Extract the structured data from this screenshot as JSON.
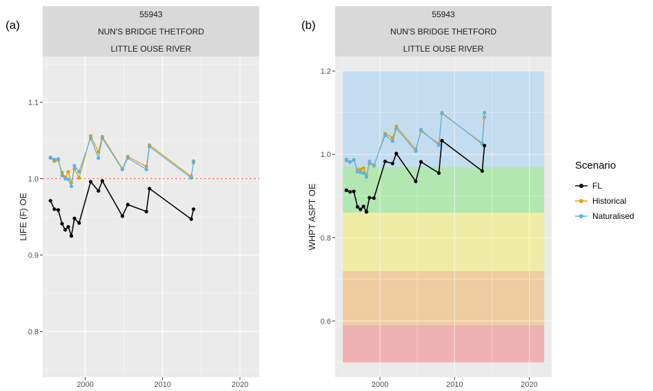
{
  "colors": {
    "FL": "#000000",
    "Historical": "#E69F00",
    "Naturalised": "#56B4E9",
    "ref_line": "#F8766D",
    "panel_bg": "#EBEBEB",
    "strip_bg": "#D9D9D9",
    "grid": "#FFFFFF",
    "band_high": "#BDD9F0",
    "band_good": "#A8E6A8",
    "band_moderate": "#F0EC9A",
    "band_poor": "#F0C894",
    "band_bad": "#F0A8A8"
  },
  "legend": {
    "title": "Scenario",
    "items": [
      "FL",
      "Historical",
      "Naturalised"
    ],
    "placement": "right"
  },
  "chart_data": [
    {
      "type": "line",
      "panel_tag": "(a)",
      "strip": [
        "55943",
        "NUN'S BRIDGE THETFORD",
        "LITTLE OUSE RIVER"
      ],
      "ylabel": "LIFE (F) OE",
      "xlabel": "",
      "xlim": [
        1994.5,
        2022.5
      ],
      "ylim": [
        0.74,
        1.16
      ],
      "xticks": [
        2000,
        2010,
        2020
      ],
      "xtick_labels": [
        "2000",
        "2010",
        "2020"
      ],
      "yticks": [
        0.8,
        0.9,
        1.0,
        1.1
      ],
      "ytick_labels": [
        "0.8",
        "0.9",
        "1.0",
        "1.1"
      ],
      "hline": 1.0,
      "grid": true,
      "series": [
        {
          "name": "FL",
          "x": [
            1995.5,
            1996,
            1996.5,
            1997,
            1997.4,
            1997.8,
            1998.2,
            1998.6,
            1999.2,
            2000.7,
            2001.7,
            2002.2,
            2004.8,
            2005.5,
            2007.9,
            2008.3,
            2013.7,
            2014
          ],
          "y": [
            0.971,
            0.96,
            0.959,
            0.941,
            0.933,
            0.937,
            0.925,
            0.948,
            0.942,
            0.996,
            0.984,
            0.997,
            0.951,
            0.966,
            0.957,
            0.987,
            0.947,
            0.96
          ]
        },
        {
          "name": "Historical",
          "x": [
            1995.5,
            1996,
            1996.5,
            1997,
            1997.4,
            1997.8,
            1998.2,
            1998.6,
            1999.2,
            2000.7,
            2001.7,
            2002.2,
            2004.8,
            2005.5,
            2007.9,
            2008.3,
            2013.7,
            2014
          ],
          "y": [
            1.027,
            1.023,
            1.024,
            1.008,
            1.002,
            1.009,
            0.995,
            1.013,
            1.001,
            1.056,
            1.035,
            1.055,
            1.013,
            1.029,
            1.016,
            1.044,
            1.003,
            1.021
          ]
        },
        {
          "name": "Naturalised",
          "x": [
            1995.5,
            1996,
            1996.5,
            1997,
            1997.4,
            1997.8,
            1998.2,
            1998.6,
            1999.2,
            2000.7,
            2001.7,
            2002.2,
            2004.8,
            2005.5,
            2007.9,
            2008.3,
            2013.7,
            2014
          ],
          "y": [
            1.028,
            1.025,
            1.026,
            1.004,
            1.0,
            0.999,
            0.99,
            1.017,
            1.009,
            1.053,
            1.027,
            1.053,
            1.012,
            1.027,
            1.012,
            1.042,
            1.001,
            1.023
          ]
        }
      ]
    },
    {
      "type": "line",
      "panel_tag": "(b)",
      "strip": [
        "55943",
        "NUN'S BRIDGE THETFORD",
        "LITTLE OUSE RIVER"
      ],
      "ylabel": "WHPT ASPT OE",
      "xlabel": "",
      "xlim": [
        1994,
        2023
      ],
      "ylim": [
        0.465,
        1.235
      ],
      "xticks": [
        2000,
        2010,
        2020
      ],
      "xtick_labels": [
        "2000",
        "2010",
        "2020"
      ],
      "yticks": [
        0.6,
        0.8,
        1.0,
        1.2
      ],
      "ytick_labels": [
        "0.6",
        "0.8",
        "1.0",
        "1.2"
      ],
      "grid": true,
      "bands": [
        {
          "class": "high",
          "from": 0.97,
          "to": 1.2,
          "color": "#BDD9F0"
        },
        {
          "class": "good",
          "from": 0.86,
          "to": 0.97,
          "color": "#A8E6A8"
        },
        {
          "class": "moderate",
          "from": 0.72,
          "to": 0.86,
          "color": "#F0EC9A"
        },
        {
          "class": "poor",
          "from": 0.59,
          "to": 0.72,
          "color": "#F0C894"
        },
        {
          "class": "bad",
          "from": 0.5,
          "to": 0.59,
          "color": "#F0A8A8"
        }
      ],
      "band_xrange": [
        1995,
        2022
      ],
      "series": [
        {
          "name": "FL",
          "x": [
            1995.5,
            1996,
            1996.5,
            1997,
            1997.4,
            1997.8,
            1998.2,
            1998.6,
            1999.2,
            2000.7,
            2001.7,
            2002.2,
            2004.8,
            2005.5,
            2007.9,
            2008.3,
            2013.7,
            2014
          ],
          "y": [
            0.914,
            0.91,
            0.911,
            0.874,
            0.868,
            0.875,
            0.862,
            0.896,
            0.895,
            0.983,
            0.978,
            1.002,
            0.935,
            0.982,
            0.955,
            1.033,
            0.96,
            1.021
          ]
        },
        {
          "name": "Historical",
          "x": [
            1995.5,
            1996,
            1996.5,
            1997,
            1997.4,
            1997.8,
            1998.2,
            1998.6,
            1999.2,
            2000.7,
            2001.7,
            2002.2,
            2004.8,
            2005.5,
            2007.9,
            2008.3,
            2013.7,
            2014
          ],
          "y": [
            0.985,
            0.981,
            0.986,
            0.962,
            0.964,
            0.967,
            0.95,
            0.978,
            0.972,
            1.05,
            1.04,
            1.067,
            1.012,
            1.056,
            1.025,
            1.098,
            1.027,
            1.089
          ]
        },
        {
          "name": "Naturalised",
          "x": [
            1995.5,
            1996,
            1996.5,
            1997,
            1997.4,
            1997.8,
            1998.2,
            1998.6,
            1999.2,
            2000.7,
            2001.7,
            2002.2,
            2004.8,
            2005.5,
            2007.9,
            2008.3,
            2013.7,
            2014
          ],
          "y": [
            0.988,
            0.982,
            0.987,
            0.958,
            0.957,
            0.955,
            0.946,
            0.983,
            0.974,
            1.046,
            1.032,
            1.062,
            1.008,
            1.059,
            1.022,
            1.1,
            1.025,
            1.1
          ]
        }
      ]
    }
  ]
}
